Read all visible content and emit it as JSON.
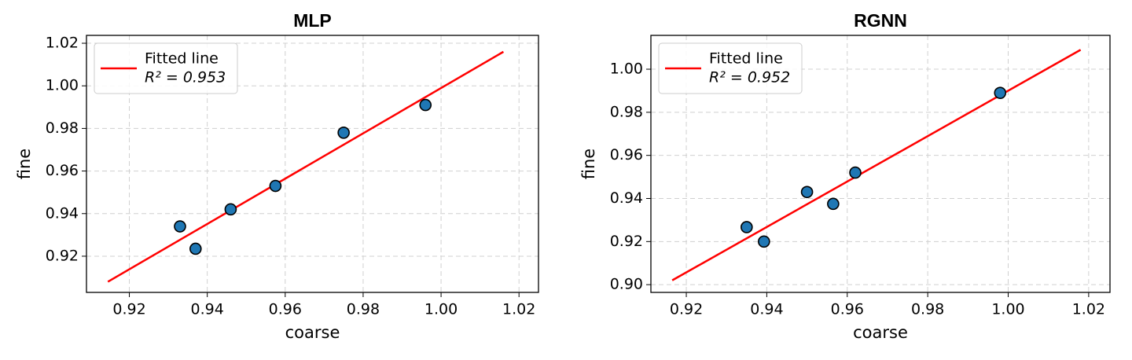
{
  "chart_data": [
    {
      "type": "scatter",
      "title": "MLP",
      "xlabel": "coarse",
      "ylabel": "fine",
      "xlim": [
        0.909,
        1.025
      ],
      "ylim": [
        0.903,
        1.0237
      ],
      "xticks": [
        0.92,
        0.94,
        0.96,
        0.98,
        {
          "value": 1,
          "label": "1.00"
        },
        1.02
      ],
      "yticks": [
        0.92,
        0.94,
        0.96,
        0.98,
        {
          "value": 1,
          "label": "1.00"
        },
        1.02
      ],
      "grid": true,
      "legend": "upper left",
      "series": [
        {
          "name": "Fitted line",
          "legend_note": "R² = 0.953",
          "type": "line",
          "color": "#ff0000",
          "x": [
            0.9145,
            1.016
          ],
          "values": [
            0.908,
            1.016
          ]
        },
        {
          "type": "scatter",
          "color": "#1f77b4",
          "x": [
            0.933,
            0.937,
            0.946,
            0.9575,
            0.975,
            0.996
          ],
          "values": [
            0.934,
            0.9235,
            0.942,
            0.953,
            0.978,
            0.991
          ]
        }
      ]
    },
    {
      "type": "scatter",
      "title": "RGNN",
      "xlabel": "coarse",
      "ylabel": "fine",
      "xlim": [
        0.9112,
        1.0253
      ],
      "ylim": [
        0.8964,
        1.0157
      ],
      "xticks": [
        0.92,
        0.94,
        0.96,
        0.98,
        {
          "value": 1,
          "label": "1.00"
        },
        1.02
      ],
      "yticks": [
        {
          "value": 0.9,
          "label": "0.90"
        },
        0.92,
        0.94,
        0.96,
        0.98,
        {
          "value": 1,
          "label": "1.00"
        }
      ],
      "grid": true,
      "legend": "upper left",
      "series": [
        {
          "name": "Fitted line",
          "legend_note": "R² = 0.952",
          "type": "line",
          "color": "#ff0000",
          "x": [
            0.9165,
            1.018
          ],
          "values": [
            0.902,
            1.009
          ]
        },
        {
          "type": "scatter",
          "color": "#1f77b4",
          "x": [
            0.935,
            0.9393,
            0.95,
            0.9565,
            0.962,
            0.998
          ],
          "values": [
            0.9267,
            0.92,
            0.943,
            0.9375,
            0.952,
            0.989
          ]
        }
      ]
    }
  ]
}
